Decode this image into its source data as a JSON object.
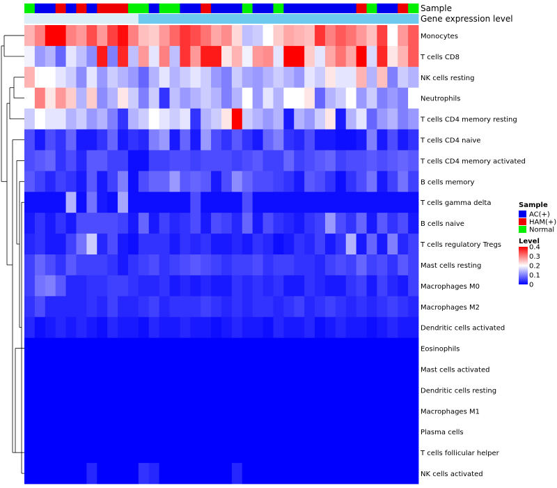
{
  "chart_data": {
    "type": "heatmap",
    "annotation_labels": {
      "sample": "Sample",
      "expression": "Gene expression level"
    },
    "legend": {
      "sample_title": "Sample",
      "sample_entries": [
        {
          "label": "AC(+)",
          "color": "#0000EE"
        },
        {
          "label": "HAM(+)",
          "color": "#EE0000"
        },
        {
          "label": "Normal",
          "color": "#00EE00"
        }
      ],
      "level_title": "Level",
      "level_ticks": [
        "0.4",
        "0.3",
        "0.2",
        "0.1",
        "0"
      ],
      "level_range": [
        0,
        0.4
      ],
      "placement": "right"
    },
    "sample_groups": [
      "Normal",
      "AC(+)",
      "AC(+)",
      "HAM(+)",
      "AC(+)",
      "HAM(+)",
      "AC(+)",
      "HAM(+)",
      "HAM(+)",
      "HAM(+)",
      "Normal",
      "Normal",
      "AC(+)",
      "Normal",
      "Normal",
      "AC(+)",
      "AC(+)",
      "HAM(+)",
      "AC(+)",
      "AC(+)",
      "AC(+)",
      "Normal",
      "AC(+)",
      "AC(+)",
      "Normal",
      "AC(+)",
      "AC(+)",
      "AC(+)",
      "AC(+)",
      "AC(+)",
      "AC(+)",
      "AC(+)",
      "HAM(+)",
      "Normal",
      "AC(+)",
      "AC(+)",
      "HAM(+)",
      "Normal"
    ],
    "gene_expression_top": [
      0.06,
      0.06,
      0.06,
      0.06,
      0.06,
      0.06,
      0.06,
      0.06,
      0.06,
      0.06,
      0.06,
      0.06,
      0.06,
      0.06,
      0.06,
      0.06,
      0.06,
      0.06,
      0.06,
      0.06,
      0.06,
      0.06,
      0.06,
      0.06,
      0.06,
      0.06,
      0.06,
      0.06,
      0.06,
      0.06,
      0.06,
      0.06,
      0.06,
      0.06,
      0.06,
      0.06,
      0.06,
      0.06
    ],
    "rows": [
      "Monocytes",
      "T cells CD8",
      "NK cells resting",
      "Neutrophils",
      "T cells CD4 memory resting",
      "T cells CD4 naive",
      "T cells CD4 memory activated",
      "B cells memory",
      "T cells gamma delta",
      "B cells naive",
      "T cells regulatory  Tregs",
      "Mast cells resting",
      "Macrophages M0",
      "Macrophages M2",
      "Dendritic cells activated",
      "Eosinophils",
      "Mast cells activated",
      "Dendritic cells resting",
      "Macrophages M1",
      "Plasma cells",
      "T cells follicular helper",
      "NK cells activated"
    ],
    "values": [
      [
        0.26,
        0.3,
        0.4,
        0.4,
        0.3,
        0.28,
        0.34,
        0.28,
        0.35,
        0.39,
        0.3,
        0.25,
        0.24,
        0.28,
        0.32,
        0.36,
        0.34,
        0.31,
        0.27,
        0.29,
        0.23,
        0.15,
        0.16,
        0.2,
        0.24,
        0.27,
        0.26,
        0.25,
        0.36,
        0.3,
        0.33,
        0.31,
        0.28,
        0.25,
        0.35,
        0.2,
        0.28,
        0.33
      ],
      [
        0.19,
        0.12,
        0.14,
        0.08,
        0.18,
        0.15,
        0.11,
        0.38,
        0.1,
        0.37,
        0.15,
        0.28,
        0.18,
        0.3,
        0.15,
        0.36,
        0.28,
        0.38,
        0.38,
        0.22,
        0.26,
        0.19,
        0.28,
        0.29,
        0.18,
        0.4,
        0.4,
        0.24,
        0.18,
        0.27,
        0.31,
        0.27,
        0.4,
        0.17,
        0.37,
        0.22,
        0.26,
        0.33
      ],
      [
        0.26,
        0.2,
        0.2,
        0.18,
        0.16,
        0.11,
        0.18,
        0.12,
        0.16,
        0.14,
        0.12,
        0.08,
        0.14,
        0.18,
        0.14,
        0.16,
        0.18,
        0.16,
        0.12,
        0.1,
        0.16,
        0.13,
        0.12,
        0.14,
        0.16,
        0.14,
        0.12,
        0.18,
        0.16,
        0.22,
        0.18,
        0.18,
        0.26,
        0.14,
        0.25,
        0.1,
        0.16,
        0.14
      ],
      [
        0.2,
        0.3,
        0.22,
        0.28,
        0.24,
        0.14,
        0.24,
        0.11,
        0.14,
        0.22,
        0.16,
        0.1,
        0.16,
        0.04,
        0.15,
        0.12,
        0.14,
        0.16,
        0.14,
        0.1,
        0.14,
        0.2,
        0.12,
        0.18,
        0.14,
        0.2,
        0.2,
        0.22,
        0.08,
        0.14,
        0.16,
        0.2,
        0.12,
        0.16,
        0.1,
        0.12,
        0.1,
        0.2
      ],
      [
        0.16,
        0.2,
        0.18,
        0.18,
        0.14,
        0.16,
        0.12,
        0.14,
        0.1,
        0.04,
        0.14,
        0.16,
        0.2,
        0.18,
        0.16,
        0.18,
        0.04,
        0.14,
        0.16,
        0.22,
        0.4,
        0.16,
        0.14,
        0.12,
        0.14,
        0.02,
        0.14,
        0.12,
        0.16,
        0.22,
        0.02,
        0.14,
        0.18,
        0.08,
        0.12,
        0.14,
        0.1,
        0.12
      ],
      [
        0.06,
        0.02,
        0.06,
        0.04,
        0.08,
        0.02,
        0.02,
        0.04,
        0.08,
        0.02,
        0.04,
        0.03,
        0.1,
        0.12,
        0.02,
        0.08,
        0.02,
        0.12,
        0.06,
        0.04,
        0.07,
        0.04,
        0.02,
        0.08,
        0.1,
        0.04,
        0.03,
        0.06,
        0.02,
        0.02,
        0.01,
        0.01,
        0.02,
        0.1,
        0.02,
        0.06,
        0.02,
        0.04
      ],
      [
        0.06,
        0.07,
        0.08,
        0.04,
        0.06,
        0.03,
        0.07,
        0.07,
        0.05,
        0.05,
        0.01,
        0.01,
        0.05,
        0.05,
        0.06,
        0.06,
        0.05,
        0.06,
        0.06,
        0.06,
        0.05,
        0.06,
        0.07,
        0.05,
        0.05,
        0.08,
        0.05,
        0.06,
        0.07,
        0.08,
        0.05,
        0.06,
        0.06,
        0.07,
        0.06,
        0.07,
        0.08,
        0.07
      ],
      [
        0.07,
        0.05,
        0.03,
        0.05,
        0.04,
        0.02,
        0.07,
        0.02,
        0.05,
        0.1,
        0.01,
        0.06,
        0.08,
        0.08,
        0.12,
        0.07,
        0.08,
        0.07,
        0.02,
        0.06,
        0.11,
        0.08,
        0.06,
        0.06,
        0.05,
        0.04,
        0.02,
        0.07,
        0.06,
        0.04,
        0.01,
        0.04,
        0.06,
        0.09,
        0.02,
        0.05,
        0.09,
        0.05
      ],
      [
        0.01,
        0.01,
        0.01,
        0.01,
        0.14,
        0.01,
        0.09,
        0.02,
        0.01,
        0.13,
        0.01,
        0.01,
        0.01,
        0.01,
        0.01,
        0.01,
        0.06,
        0.01,
        0.01,
        0.01,
        0.01,
        0.06,
        0.01,
        0.01,
        0.01,
        0.01,
        0.01,
        0.01,
        0.01,
        0.01,
        0.01,
        0.01,
        0.01,
        0.01,
        0.01,
        0.01,
        0.01,
        0.01
      ],
      [
        0.02,
        0.04,
        0.02,
        0.04,
        0.02,
        0.06,
        0.06,
        0.06,
        0.06,
        0.05,
        0.02,
        0.08,
        0.02,
        0.05,
        0.03,
        0.04,
        0.06,
        0.02,
        0.06,
        0.05,
        0.03,
        0.08,
        0.02,
        0.06,
        0.04,
        0.03,
        0.02,
        0.04,
        0.05,
        0.12,
        0.06,
        0.04,
        0.08,
        0.02,
        0.07,
        0.04,
        0.06,
        0.02
      ],
      [
        0.03,
        0.04,
        0.02,
        0.02,
        0.05,
        0.09,
        0.16,
        0.03,
        0.06,
        0.02,
        0.01,
        0.04,
        0.04,
        0.04,
        0.02,
        0.04,
        0.03,
        0.04,
        0.02,
        0.02,
        0.03,
        0.02,
        0.04,
        0.03,
        0.01,
        0.02,
        0.04,
        0.03,
        0.05,
        0.02,
        0.04,
        0.14,
        0.02,
        0.08,
        0.02,
        0.1,
        0.03,
        0.05
      ],
      [
        0.05,
        0.08,
        0.06,
        0.04,
        0.07,
        0.05,
        0.05,
        0.05,
        0.04,
        0.02,
        0.04,
        0.05,
        0.06,
        0.04,
        0.05,
        0.06,
        0.07,
        0.06,
        0.05,
        0.04,
        0.05,
        0.05,
        0.06,
        0.04,
        0.05,
        0.05,
        0.04,
        0.04,
        0.03,
        0.05,
        0.06,
        0.05,
        0.08,
        0.05,
        0.06,
        0.04,
        0.07,
        0.05
      ],
      [
        0.05,
        0.09,
        0.1,
        0.07,
        0.03,
        0.03,
        0.04,
        0.04,
        0.05,
        0.05,
        0.04,
        0.03,
        0.03,
        0.04,
        0.02,
        0.03,
        0.02,
        0.03,
        0.02,
        0.02,
        0.04,
        0.03,
        0.04,
        0.03,
        0.04,
        0.02,
        0.02,
        0.04,
        0.03,
        0.02,
        0.02,
        0.04,
        0.05,
        0.02,
        0.05,
        0.03,
        0.02,
        0.05
      ],
      [
        0.04,
        0.06,
        0.03,
        0.03,
        0.03,
        0.03,
        0.04,
        0.03,
        0.05,
        0.03,
        0.03,
        0.04,
        0.05,
        0.03,
        0.04,
        0.04,
        0.04,
        0.05,
        0.04,
        0.03,
        0.04,
        0.03,
        0.04,
        0.04,
        0.03,
        0.04,
        0.05,
        0.03,
        0.04,
        0.05,
        0.04,
        0.03,
        0.04,
        0.03,
        0.04,
        0.05,
        0.04,
        0.03
      ],
      [
        0.03,
        0.01,
        0.02,
        0.03,
        0.02,
        0.03,
        0.02,
        0.01,
        0.03,
        0.02,
        0.02,
        0.01,
        0.03,
        0.02,
        0.02,
        0.03,
        0.02,
        0.02,
        0.01,
        0.02,
        0.03,
        0.02,
        0.02,
        0.01,
        0.03,
        0.02,
        0.02,
        0.03,
        0.01,
        0.02,
        0.03,
        0.02,
        0.02,
        0.01,
        0.02,
        0.03,
        0.02,
        0.02
      ],
      [
        0,
        0,
        0,
        0,
        0,
        0,
        0,
        0,
        0,
        0,
        0,
        0,
        0,
        0,
        0,
        0,
        0,
        0,
        0,
        0,
        0,
        0,
        0,
        0,
        0,
        0,
        0,
        0,
        0,
        0,
        0,
        0,
        0,
        0,
        0,
        0,
        0,
        0
      ],
      [
        0,
        0,
        0,
        0,
        0,
        0,
        0,
        0,
        0,
        0,
        0,
        0,
        0,
        0,
        0,
        0,
        0,
        0,
        0,
        0,
        0,
        0,
        0,
        0,
        0,
        0,
        0,
        0,
        0,
        0,
        0,
        0,
        0,
        0,
        0,
        0,
        0,
        0
      ],
      [
        0,
        0,
        0,
        0,
        0,
        0,
        0,
        0,
        0,
        0,
        0,
        0,
        0,
        0,
        0,
        0,
        0,
        0,
        0,
        0,
        0,
        0,
        0,
        0,
        0,
        0,
        0,
        0,
        0,
        0,
        0,
        0,
        0,
        0,
        0,
        0,
        0,
        0
      ],
      [
        0,
        0,
        0,
        0,
        0,
        0,
        0,
        0,
        0,
        0,
        0,
        0,
        0,
        0,
        0,
        0,
        0,
        0,
        0,
        0,
        0,
        0,
        0,
        0,
        0,
        0,
        0,
        0,
        0,
        0,
        0,
        0,
        0,
        0,
        0,
        0,
        0,
        0
      ],
      [
        0,
        0,
        0,
        0,
        0,
        0,
        0,
        0,
        0,
        0,
        0,
        0,
        0,
        0,
        0,
        0,
        0,
        0,
        0,
        0,
        0,
        0,
        0,
        0,
        0,
        0,
        0,
        0,
        0,
        0,
        0,
        0,
        0,
        0,
        0,
        0,
        0,
        0
      ],
      [
        0,
        0,
        0,
        0,
        0,
        0,
        0,
        0,
        0,
        0,
        0,
        0,
        0,
        0,
        0,
        0,
        0,
        0,
        0,
        0,
        0,
        0,
        0,
        0,
        0,
        0,
        0,
        0,
        0,
        0,
        0,
        0,
        0,
        0,
        0,
        0,
        0,
        0
      ],
      [
        0,
        0,
        0,
        0,
        0,
        0,
        0.03,
        0,
        0,
        0,
        0,
        0.04,
        0.03,
        0,
        0,
        0,
        0,
        0,
        0,
        0,
        0.03,
        0,
        0,
        0,
        0,
        0,
        0,
        0,
        0,
        0,
        0,
        0,
        0,
        0,
        0,
        0,
        0,
        0
      ]
    ]
  }
}
